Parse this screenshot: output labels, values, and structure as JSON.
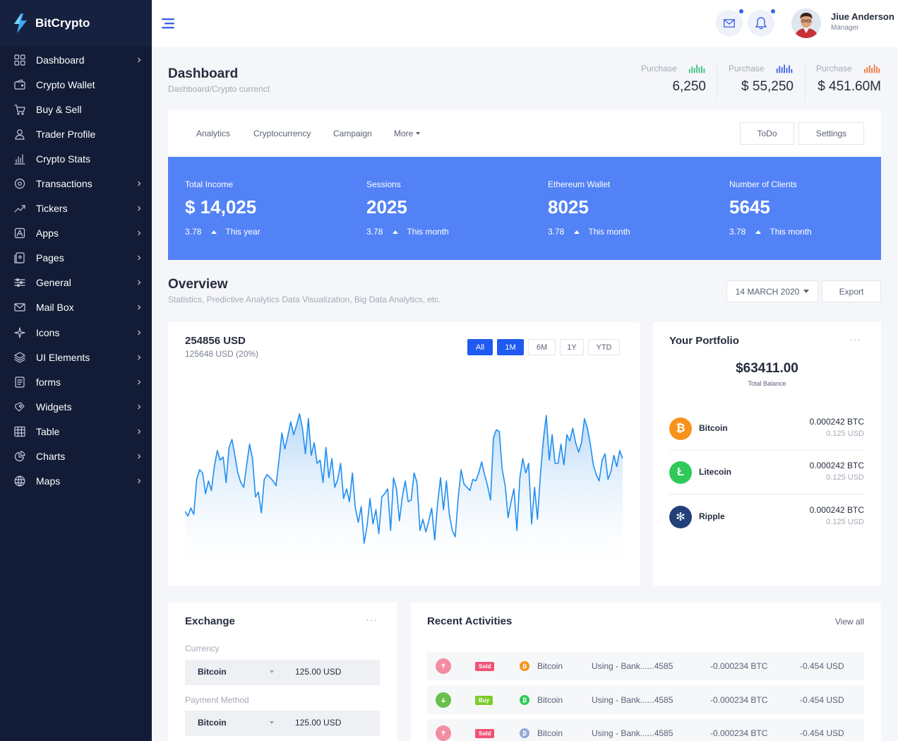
{
  "brand": {
    "name": "BitCrypto"
  },
  "sidebar": {
    "items": [
      {
        "label": "Dashboard",
        "icon": "grid-icon",
        "has_submenu": true
      },
      {
        "label": "Crypto Wallet",
        "icon": "wallet-icon",
        "has_submenu": false
      },
      {
        "label": "Buy & Sell",
        "icon": "cart-icon",
        "has_submenu": false
      },
      {
        "label": "Trader Profile",
        "icon": "user-icon",
        "has_submenu": false
      },
      {
        "label": "Crypto Stats",
        "icon": "bar-chart-icon",
        "has_submenu": false
      },
      {
        "label": "Transactions",
        "icon": "transactions-icon",
        "has_submenu": true
      },
      {
        "label": "Tickers",
        "icon": "trending-icon",
        "has_submenu": true
      },
      {
        "label": "Apps",
        "icon": "apps-icon",
        "has_submenu": true
      },
      {
        "label": "Pages",
        "icon": "pages-icon",
        "has_submenu": true
      },
      {
        "label": "General",
        "icon": "sliders-icon",
        "has_submenu": true
      },
      {
        "label": "Mail Box",
        "icon": "mail-icon",
        "has_submenu": true
      },
      {
        "label": "Icons",
        "icon": "sparkle-icon",
        "has_submenu": true
      },
      {
        "label": "UI Elements",
        "icon": "layers-icon",
        "has_submenu": true
      },
      {
        "label": "forms",
        "icon": "form-icon",
        "has_submenu": true
      },
      {
        "label": "Widgets",
        "icon": "widget-icon",
        "has_submenu": true
      },
      {
        "label": "Table",
        "icon": "table-icon",
        "has_submenu": true
      },
      {
        "label": "Charts",
        "icon": "pie-chart-icon",
        "has_submenu": true
      },
      {
        "label": "Maps",
        "icon": "globe-icon",
        "has_submenu": true
      }
    ]
  },
  "header": {
    "user_name": "Jiue Anderson",
    "user_role": "Manager"
  },
  "page": {
    "title": "Dashboard",
    "breadcrumb": "Dashboard/Crypto currenct"
  },
  "purchase_stats": [
    {
      "label": "Purchase",
      "value": "6,250",
      "color": "#3fbf7f"
    },
    {
      "label": "Purchase",
      "value": "$ 55,250",
      "color": "#3c62e8"
    },
    {
      "label": "Purchase",
      "value": "$ 451.60M",
      "color": "#f2733b"
    }
  ],
  "tabs": [
    "Analytics",
    "Cryptocurrency",
    "Campaign",
    "More"
  ],
  "tab_buttons": {
    "todo": "ToDo",
    "settings": "Settings"
  },
  "kpis": [
    {
      "label": "Total Income",
      "value": "$ 14,025",
      "change": "3.78",
      "period": "This year"
    },
    {
      "label": "Sessions",
      "value": "2025",
      "change": "3.78",
      "period": "This month"
    },
    {
      "label": "Ethereum Wallet",
      "value": "8025",
      "change": "3.78",
      "period": "This month"
    },
    {
      "label": "Number of Clients",
      "value": "5645",
      "change": "3.78",
      "period": "This month"
    }
  ],
  "overview": {
    "title": "Overview",
    "subtitle": "Statistics, Predictive Analytics Data Visualization, Big Data Analytics, etc.",
    "date": "14 MARCH 2020",
    "export": "Export"
  },
  "chart_card": {
    "amount": "254856 USD",
    "sub": "125648 USD (20%)",
    "ranges": [
      "All",
      "1M",
      "6M",
      "1Y",
      "YTD"
    ],
    "active_ranges": [
      "All",
      "1M"
    ]
  },
  "chart_data": {
    "type": "area",
    "title": "",
    "xlabel": "",
    "ylabel": "",
    "color": "#1f8ef1",
    "ylim": [
      0,
      100
    ],
    "values": [
      24,
      21,
      26,
      22,
      44,
      50,
      48,
      35,
      43,
      37,
      52,
      62,
      56,
      58,
      42,
      64,
      69,
      59,
      48,
      42,
      39,
      53,
      66,
      57,
      33,
      36,
      23,
      44,
      47,
      45,
      43,
      40,
      56,
      73,
      63,
      71,
      80,
      72,
      78,
      85,
      76,
      60,
      82,
      59,
      67,
      54,
      56,
      42,
      64,
      45,
      57,
      39,
      44,
      54,
      32,
      38,
      30,
      48,
      26,
      17,
      27,
      4,
      15,
      32,
      16,
      25,
      10,
      33,
      35,
      38,
      12,
      45,
      38,
      18,
      33,
      43,
      30,
      31,
      48,
      42,
      12,
      19,
      11,
      18,
      26,
      6,
      29,
      45,
      25,
      43,
      22,
      12,
      8,
      32,
      50,
      41,
      39,
      37,
      44,
      43,
      48,
      55,
      47,
      40,
      31,
      70,
      75,
      74,
      50,
      40,
      20,
      30,
      38,
      12,
      45,
      57,
      48,
      54,
      16,
      39,
      19,
      47,
      69,
      84,
      56,
      72,
      54,
      54,
      66,
      53,
      72,
      68,
      76,
      67,
      61,
      67,
      82,
      76,
      66,
      53,
      47,
      43,
      56,
      60,
      44,
      49,
      59,
      52,
      62,
      57
    ],
    "grid": false,
    "legend": "none"
  },
  "portfolio": {
    "title": "Your Portfolio",
    "balance": "$63411.00",
    "balance_label": "Total Balance",
    "coins": [
      {
        "name": "Bitcoin",
        "amount": "0.000242 BTC",
        "usd": "0.125 USD",
        "color": "#f7931a",
        "icon": "bitcoin-icon",
        "glyph": "₿"
      },
      {
        "name": "Litecoin",
        "amount": "0.000242 BTC",
        "usd": "0.125 USD",
        "color": "#2fca5a",
        "icon": "litecoin-icon",
        "glyph": "Ł"
      },
      {
        "name": "Ripple",
        "amount": "0.000242 BTC",
        "usd": "0.125 USD",
        "color": "#23407a",
        "icon": "ripple-icon",
        "glyph": "✻"
      }
    ]
  },
  "exchange": {
    "title": "Exchange",
    "currency_label": "Currency",
    "currency": "Bitcoin",
    "currency_amount": "125.00 USD",
    "payment_label": "Payment Method",
    "payment": "Bitcoin",
    "payment_amount": "125.00 USD"
  },
  "activities": {
    "title": "Recent Activities",
    "view_all": "View all",
    "rows": [
      {
        "direction": "up",
        "badge": "Sold",
        "badge_color": "#f15376",
        "arrow_color": "#f48da1",
        "coin": "Bitcoin",
        "coin_color": "#f7931a",
        "desc": "Using - Bank......4585",
        "btc": "-0.000234 BTC",
        "usd": "-0.454 USD"
      },
      {
        "direction": "down",
        "badge": "Buy",
        "badge_color": "#7dcc2b",
        "arrow_color": "#69c04d",
        "coin": "Bitcoin",
        "coin_color": "#2fca5a",
        "desc": "Using - Bank......4585",
        "btc": "-0.000234 BTC",
        "usd": "-0.454 USD"
      },
      {
        "direction": "up",
        "badge": "Sold",
        "badge_color": "#f15376",
        "arrow_color": "#f48da1",
        "coin": "Bitcoin",
        "coin_color": "#8fa8d8",
        "desc": "Using - Bank......4585",
        "btc": "-0.000234 BTC",
        "usd": "-0.454 USD"
      }
    ]
  }
}
